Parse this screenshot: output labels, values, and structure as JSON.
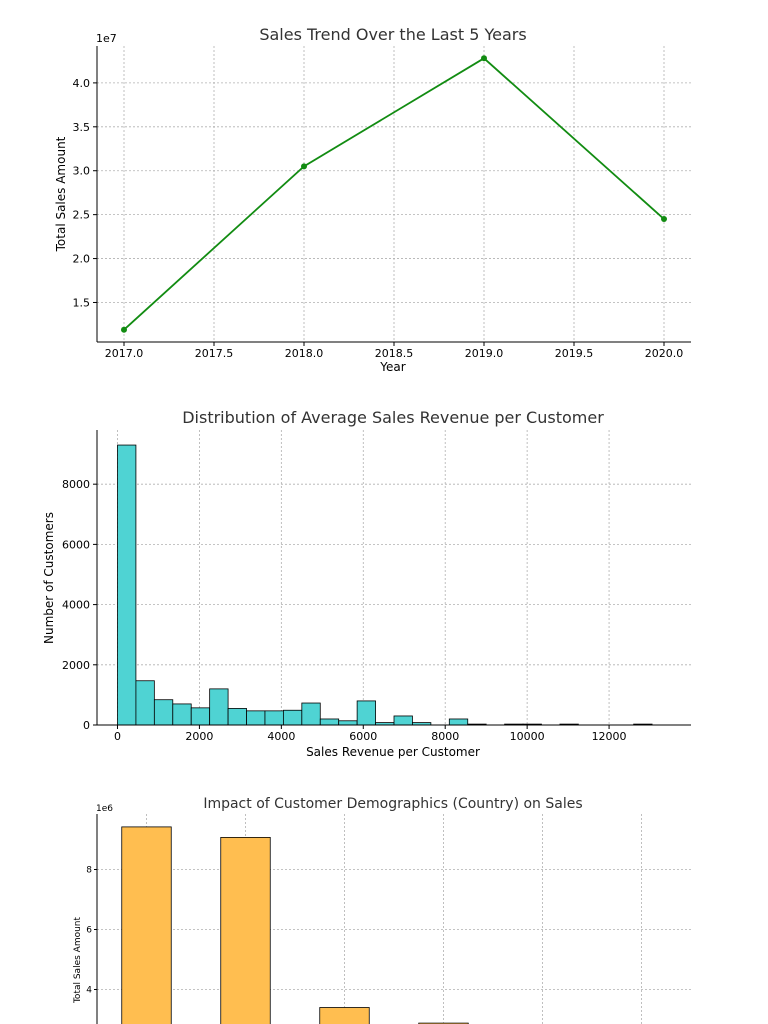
{
  "chart_data": [
    {
      "type": "line",
      "title": "Sales Trend Over the Last 5 Years",
      "xlabel": "Year",
      "ylabel": "Total Sales Amount",
      "offset_label": "1e7",
      "x": [
        2017,
        2018,
        2019,
        2020
      ],
      "y": [
        1.19,
        3.05,
        4.28,
        2.45
      ],
      "xlim": [
        2016.85,
        2020.15
      ],
      "ylim": [
        1.05,
        4.42
      ],
      "xticks": [
        2017.0,
        2017.5,
        2018.0,
        2018.5,
        2019.0,
        2019.5,
        2020.0
      ],
      "xtick_labels": [
        "2017.0",
        "2017.5",
        "2018.0",
        "2018.5",
        "2019.0",
        "2019.5",
        "2020.0"
      ],
      "yticks": [
        1.5,
        2.0,
        2.5,
        3.0,
        3.5,
        4.0
      ],
      "ytick_labels": [
        "1.5",
        "2.0",
        "2.5",
        "3.0",
        "3.5",
        "4.0"
      ],
      "color": "#128c12",
      "grid": true
    },
    {
      "type": "bar",
      "subtype": "histogram",
      "title": "Distribution of Average Sales Revenue per Customer",
      "xlabel": "Sales Revenue per Customer",
      "ylabel": "Number of Customers",
      "bin_edges": [
        0,
        450,
        900,
        1350,
        1800,
        2250,
        2700,
        3150,
        3600,
        4050,
        4500,
        4950,
        5400,
        5850,
        6300,
        6750,
        7200,
        7650,
        8100,
        8550,
        9000,
        9450,
        9900,
        10350,
        10800,
        11250,
        11700,
        12150,
        12600,
        13050,
        13500
      ],
      "values": [
        9300,
        1470,
        840,
        700,
        570,
        1200,
        550,
        470,
        470,
        490,
        730,
        200,
        140,
        800,
        80,
        300,
        80,
        0,
        200,
        30,
        0,
        30,
        30,
        0,
        30,
        0,
        0,
        0,
        30,
        0
      ],
      "xlim": [
        -500,
        14000
      ],
      "ylim": [
        0,
        9800
      ],
      "xticks": [
        0,
        2000,
        4000,
        6000,
        8000,
        10000,
        12000
      ],
      "xtick_labels": [
        "0",
        "2000",
        "4000",
        "6000",
        "8000",
        "10000",
        "12000"
      ],
      "yticks": [
        0,
        2000,
        4000,
        6000,
        8000
      ],
      "ytick_labels": [
        "0",
        "2000",
        "4000",
        "6000",
        "8000"
      ],
      "color": "#4fd3d3",
      "edge_color": "#000000",
      "grid": true
    },
    {
      "type": "bar",
      "title": "Impact of Customer Demographics (Country) on Sales",
      "xlabel": "",
      "ylabel": "Total Sales Amount",
      "offset_label": "1e6",
      "values": [
        9.42,
        9.07,
        3.4,
        2.88
      ],
      "ylim_top": 9.85,
      "yticks": [
        4,
        6,
        8
      ],
      "ytick_labels": [
        "4",
        "6",
        "8"
      ],
      "n_slots": 6,
      "color": "#ffbe50",
      "edge_color": "#000000",
      "grid": true
    }
  ]
}
